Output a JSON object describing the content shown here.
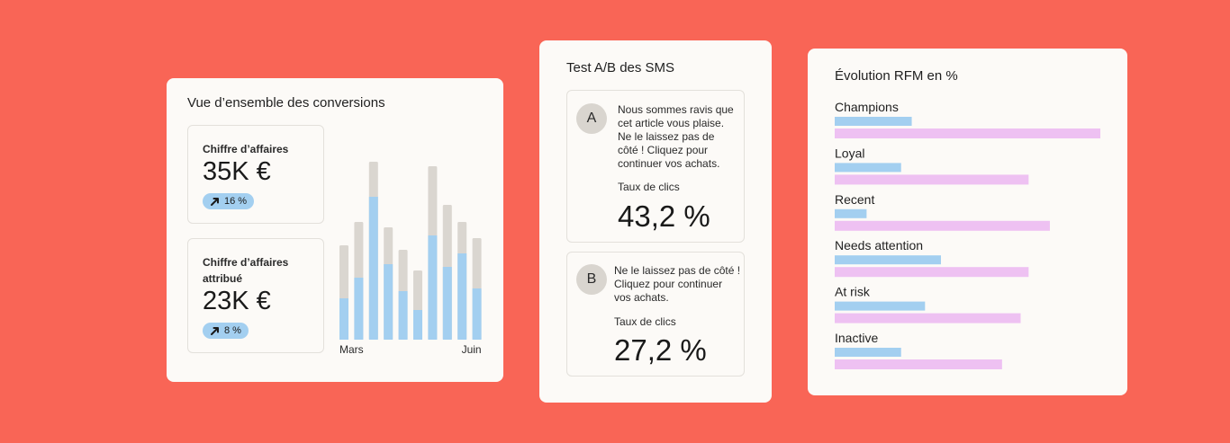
{
  "conversions": {
    "title": "Vue d’ensemble des conversions",
    "revenue": {
      "label": "Chiffre d’affaires",
      "value": "35K €",
      "change": "16 %"
    },
    "attributed": {
      "label_line1": "Chiffre d’affaires",
      "label_line2": "attribué",
      "value": "23K €",
      "change": "8 %"
    }
  },
  "sms_test": {
    "title": "Test A/B des SMS",
    "variant_a": {
      "letter": "A",
      "message_lines": [
        "Nous sommes ravis que",
        "cet article vous plaise.",
        "Ne le laissez pas de",
        "côté ! Cliquez pour",
        "continuer vos achats."
      ],
      "rate_label": "Taux de clics",
      "rate_value": "43,2 %"
    },
    "variant_b": {
      "letter": "B",
      "message_lines": [
        "Ne le laissez pas de côté !",
        "Cliquez pour continuer",
        "vos achats."
      ],
      "rate_label": "Taux de clics",
      "rate_value": "27,2 %"
    }
  },
  "colors": {
    "background": "#F96556",
    "card": "#FCFAF7",
    "blue": "#A3CFF0",
    "gray": "#DAD6D0",
    "pink": "#EEC1F2"
  },
  "chart_data": [
    {
      "type": "bar",
      "title": "",
      "x_tick_labels": [
        "Mars",
        "Juin"
      ],
      "ylim": [
        0,
        200
      ],
      "series": [
        {
          "values": [
            46,
            69,
            159,
            84,
            54,
            33,
            116,
            81,
            96,
            57
          ]
        },
        {
          "values": [
            105,
            131,
            198,
            125,
            100,
            77,
            193,
            150,
            131,
            113
          ]
        }
      ]
    },
    {
      "type": "bar",
      "orientation": "horizontal",
      "title": "Évolution RFM en %",
      "categories": [
        "Champions",
        "Loyal",
        "Recent",
        "Needs attention",
        "At risk",
        "Inactive"
      ],
      "xlim": [
        0,
        100
      ],
      "series": [
        {
          "values": [
            29,
            25,
            12,
            40,
            34,
            25
          ]
        },
        {
          "values": [
            100,
            73,
            81,
            73,
            70,
            63
          ]
        }
      ]
    }
  ]
}
